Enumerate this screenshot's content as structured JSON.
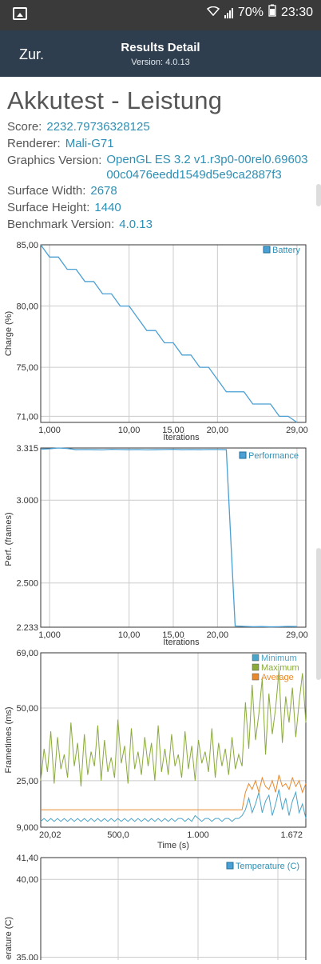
{
  "statusbar": {
    "battery": "70%",
    "time": "23:30"
  },
  "header": {
    "back": "Zur.",
    "title": "Results Detail",
    "subtitle": "Version: 4.0.13"
  },
  "heading": "Akkutest - Leistung",
  "details": [
    {
      "label": "Score:",
      "value": "2232.79736328125"
    },
    {
      "label": "Renderer:",
      "value": "Mali-G71"
    },
    {
      "label": "Graphics Version:",
      "value": "OpenGL ES 3.2 v1.r3p0-00rel0.69603 00c0476eedd1549d5e9ca2887f3"
    },
    {
      "label": "Surface Width:",
      "value": "2678"
    },
    {
      "label": "Surface Height:",
      "value": "1440"
    },
    {
      "label": "Benchmark Version:",
      "value": "4.0.13"
    }
  ],
  "colors": {
    "accent": "#2f8fb3",
    "battery": "#4a9fd4",
    "minimum": "#4aa3c8",
    "maximum": "#8aaa3a",
    "average": "#e8892e"
  },
  "chart_data": [
    {
      "type": "line",
      "ylabel": "Charge (%)",
      "xlabel": "Iterations",
      "xticks": [
        "1,000",
        "10,00",
        "15,00",
        "20,00",
        "29,00"
      ],
      "yticks": [
        "85,00",
        "80,00",
        "75,00",
        "71,00"
      ],
      "ylim": [
        70.5,
        85
      ],
      "xlim": [
        0,
        30
      ],
      "series": [
        {
          "name": "Battery",
          "x": [
            0,
            1,
            2,
            3,
            4,
            5,
            6,
            7,
            8,
            9,
            10,
            11,
            12,
            13,
            14,
            15,
            16,
            17,
            18,
            19,
            20,
            21,
            22,
            23,
            24,
            25,
            26,
            27,
            28,
            29
          ],
          "values": [
            85,
            84,
            84,
            83,
            83,
            82,
            82,
            81,
            81,
            80,
            80,
            79,
            78,
            78,
            77,
            77,
            76,
            76,
            75,
            75,
            74,
            73,
            73,
            73,
            72,
            72,
            72,
            71,
            71,
            70.5
          ]
        }
      ]
    },
    {
      "type": "line",
      "ylabel": "Perf. (frames)",
      "xlabel": "Iterations",
      "xticks": [
        "1,000",
        "10,00",
        "15,00",
        "20,00",
        "29,00"
      ],
      "yticks": [
        "3.315",
        "3.000",
        "2.500",
        "2.233"
      ],
      "ylim": [
        2233,
        3315
      ],
      "xlim": [
        0,
        30
      ],
      "series": [
        {
          "name": "Performance",
          "x": [
            0,
            1,
            2,
            3,
            4,
            5,
            6,
            7,
            8,
            9,
            10,
            11,
            12,
            13,
            14,
            15,
            16,
            17,
            18,
            19,
            20,
            21,
            22,
            23,
            24,
            25,
            26,
            27,
            28,
            29
          ],
          "values": [
            3308,
            3310,
            3315,
            3312,
            3305,
            3306,
            3305,
            3304,
            3307,
            3306,
            3305,
            3306,
            3304,
            3305,
            3306,
            3307,
            3305,
            3306,
            3305,
            3306,
            3306,
            3305,
            2240,
            2238,
            2236,
            2237,
            2235,
            2236,
            2238,
            2237
          ]
        }
      ]
    },
    {
      "type": "line",
      "ylabel": "Frametimes (ms)",
      "xlabel": "Time (s)",
      "xticks": [
        "20,02",
        "500,0",
        "1.000",
        "1.672"
      ],
      "yticks": [
        "69,00",
        "50,00",
        "25,00",
        "9,000"
      ],
      "ylim": [
        9,
        69
      ],
      "series": [
        {
          "name": "Minimum",
          "values": [
            11,
            12,
            11,
            12,
            11,
            12,
            11,
            12,
            11,
            12,
            11,
            12,
            11,
            12,
            11,
            12,
            11,
            12,
            11,
            12,
            11,
            12,
            11,
            12,
            11,
            12,
            11,
            12,
            11,
            12,
            11,
            12,
            11,
            12,
            11,
            12,
            11,
            12,
            11,
            12,
            11,
            12,
            12,
            11,
            12,
            11,
            13,
            12,
            11,
            12,
            12,
            11,
            12,
            12,
            11,
            12,
            12,
            11,
            12,
            12,
            13,
            15,
            19,
            14,
            17,
            21,
            14,
            18,
            20,
            13,
            17,
            22,
            15,
            19,
            13,
            18,
            21,
            14,
            17,
            12
          ]
        },
        {
          "name": "Maximum",
          "values": [
            25,
            36,
            28,
            42,
            24,
            40,
            29,
            34,
            26,
            45,
            30,
            38,
            23,
            41,
            27,
            35,
            30,
            44,
            25,
            39,
            28,
            33,
            26,
            46,
            31,
            37,
            24,
            43,
            29,
            35,
            27,
            40,
            30,
            38,
            25,
            44,
            28,
            36,
            27,
            41,
            30,
            34,
            26,
            42,
            29,
            37,
            25,
            39,
            31,
            35,
            28,
            43,
            26,
            38,
            30,
            36,
            27,
            40,
            29,
            34,
            30,
            52,
            36,
            58,
            39,
            48,
            60,
            34,
            55,
            41,
            50,
            63,
            38,
            54,
            45,
            57,
            40,
            52,
            62,
            45
          ]
        },
        {
          "name": "Average",
          "values": [
            15,
            15,
            15,
            15,
            15,
            15,
            15,
            15,
            15,
            15,
            15,
            15,
            15,
            15,
            15,
            15,
            15,
            15,
            15,
            15,
            15,
            15,
            15,
            15,
            15,
            15,
            15,
            15,
            15,
            15,
            15,
            15,
            15,
            15,
            15,
            15,
            15,
            15,
            15,
            15,
            15,
            15,
            15,
            15,
            15,
            15,
            15,
            15,
            15,
            15,
            15,
            15,
            15,
            15,
            15,
            15,
            15,
            15,
            15,
            15,
            15,
            21,
            24,
            22,
            25,
            21,
            26,
            23,
            22,
            25,
            21,
            27,
            23,
            24,
            22,
            26,
            23,
            25,
            21,
            24
          ]
        }
      ]
    },
    {
      "type": "line",
      "ylabel": "Temperature (C)",
      "yticks": [
        "41,40",
        "40,00",
        "35,00"
      ],
      "ylim": [
        34,
        41.4
      ],
      "series": [
        {
          "name": "Temperature (C)",
          "values": []
        }
      ]
    }
  ]
}
